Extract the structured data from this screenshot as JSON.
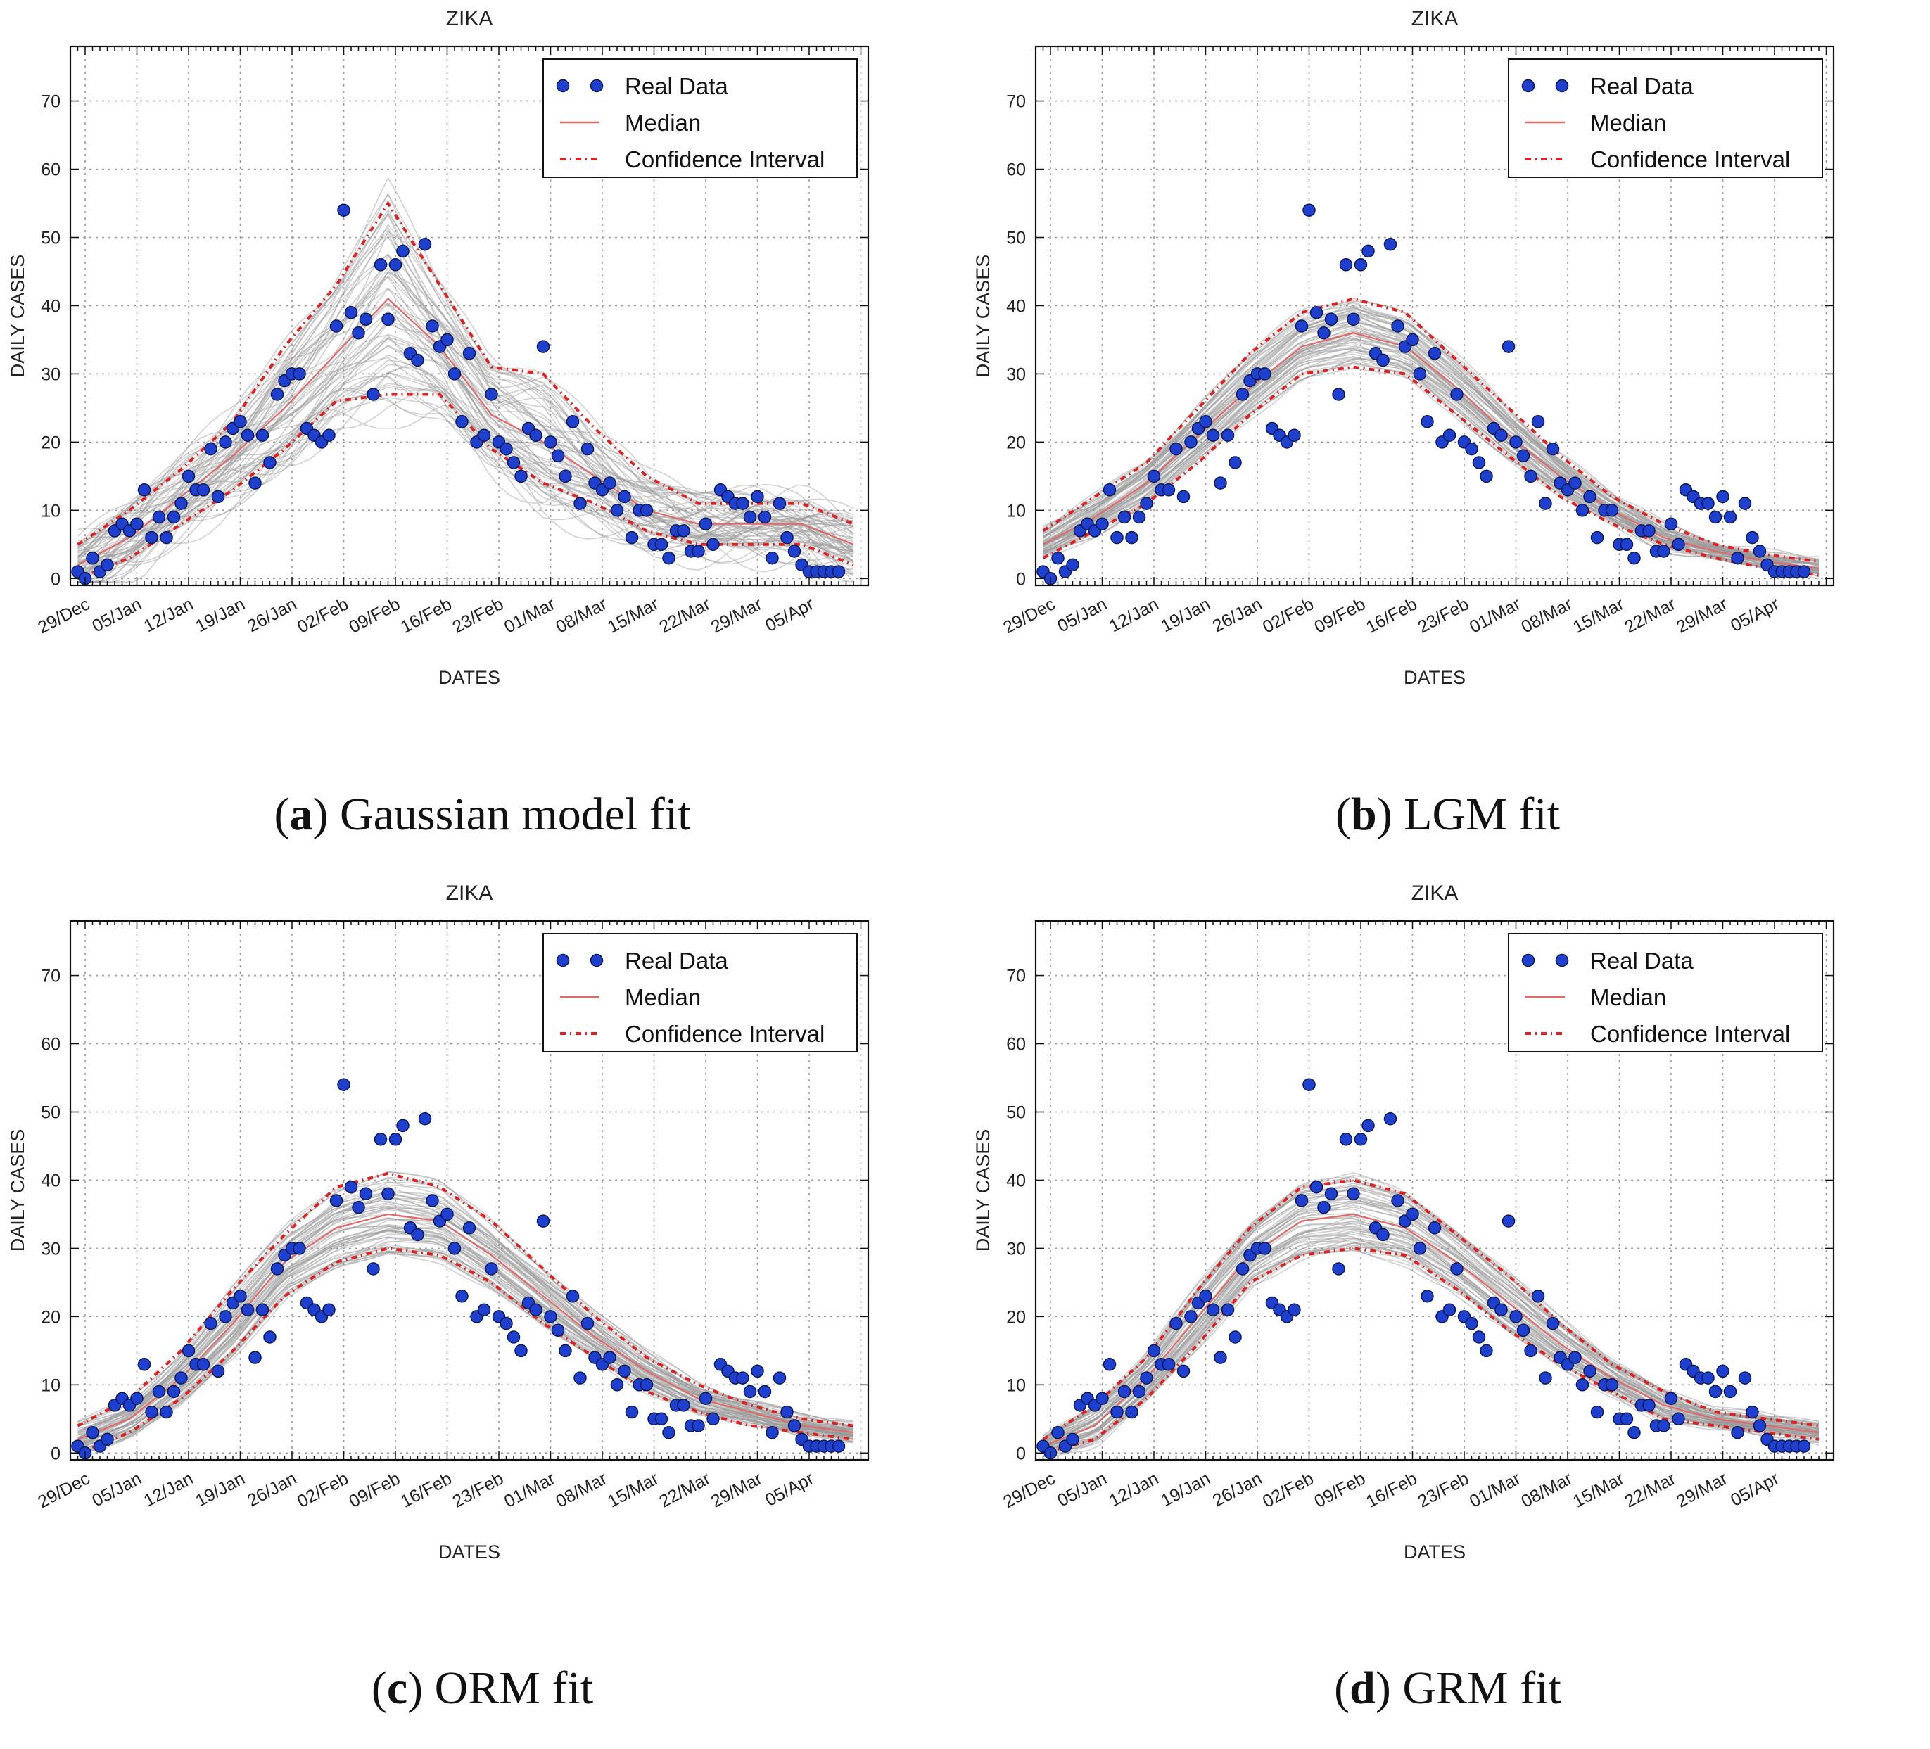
{
  "colors": {
    "real_data": "#1f3fcf",
    "median": "#e06a6a",
    "confidence_interval": "#e02020",
    "simulations": "#9a9a9a",
    "grid": "#9a9a9a"
  },
  "chart_data": [
    {
      "type": "line",
      "panel": "a",
      "caption_letter": "a",
      "caption_text": "Gaussian model fit",
      "title": "ZIKA",
      "xlabel": "DATES",
      "ylabel": "DAILY CASES",
      "ylim": [
        -1,
        78
      ],
      "xlim": [
        "2019-12-27",
        "2020-04-13"
      ],
      "yticks": [
        0,
        10,
        20,
        30,
        40,
        50,
        60,
        70
      ],
      "xticks": [
        "29/Dec",
        "05/Jan",
        "12/Jan",
        "19/Jan",
        "26/Jan",
        "02/Feb",
        "09/Feb",
        "16/Feb",
        "23/Feb",
        "01/Mar",
        "08/Mar",
        "15/Mar",
        "22/Mar",
        "29/Mar",
        "05/Apr"
      ],
      "grid": true,
      "legend_position": "top-right",
      "legend": [
        "Real Data",
        "Median",
        "Confidence Interval"
      ],
      "series": [
        {
          "name": "Median",
          "x": [
            "2019-12-28",
            "2020-01-04",
            "2020-01-11",
            "2020-01-18",
            "2020-01-25",
            "2020-02-01",
            "2020-02-08",
            "2020-02-15",
            "2020-02-22",
            "2020-02-29",
            "2020-03-07",
            "2020-03-14",
            "2020-03-21",
            "2020-03-28",
            "2020-04-04",
            "2020-04-11"
          ],
          "y": [
            2,
            6,
            12,
            18,
            25,
            33,
            41,
            34,
            24,
            20,
            15,
            10,
            8,
            8,
            8,
            5
          ]
        },
        {
          "name": "Confidence Interval (upper)",
          "x": [
            "2019-12-28",
            "2020-01-04",
            "2020-01-11",
            "2020-01-18",
            "2020-01-25",
            "2020-02-01",
            "2020-02-08",
            "2020-02-15",
            "2020-02-22",
            "2020-02-29",
            "2020-03-07",
            "2020-03-14",
            "2020-03-21",
            "2020-03-28",
            "2020-04-04",
            "2020-04-11"
          ],
          "y": [
            5,
            10,
            16,
            23,
            34,
            43,
            55,
            43,
            31,
            30,
            22,
            15,
            11,
            11,
            11,
            8
          ]
        },
        {
          "name": "Confidence Interval (lower)",
          "x": [
            "2019-12-28",
            "2020-01-04",
            "2020-01-11",
            "2020-01-18",
            "2020-01-25",
            "2020-02-01",
            "2020-02-08",
            "2020-02-15",
            "2020-02-22",
            "2020-02-29",
            "2020-03-07",
            "2020-03-14",
            "2020-03-21",
            "2020-03-28",
            "2020-04-04",
            "2020-04-11"
          ],
          "y": [
            0,
            3,
            8,
            13,
            19,
            26,
            27,
            27,
            19,
            14,
            11,
            7,
            5,
            5,
            5,
            2
          ]
        }
      ]
    },
    {
      "type": "line",
      "panel": "b",
      "caption_letter": "b",
      "caption_text": "LGM fit",
      "title": "ZIKA",
      "xlabel": "DATES",
      "ylabel": "DAILY CASES",
      "ylim": [
        -1,
        78
      ],
      "xlim": [
        "2019-12-27",
        "2020-04-13"
      ],
      "yticks": [
        0,
        10,
        20,
        30,
        40,
        50,
        60,
        70
      ],
      "xticks": [
        "29/Dec",
        "05/Jan",
        "12/Jan",
        "19/Jan",
        "26/Jan",
        "02/Feb",
        "09/Feb",
        "16/Feb",
        "23/Feb",
        "01/Mar",
        "08/Mar",
        "15/Mar",
        "22/Mar",
        "29/Mar",
        "05/Apr"
      ],
      "grid": true,
      "legend_position": "top-right",
      "legend": [
        "Real Data",
        "Median",
        "Confidence Interval"
      ],
      "series": [
        {
          "name": "Median",
          "x": [
            "2019-12-28",
            "2020-01-04",
            "2020-01-11",
            "2020-01-18",
            "2020-01-25",
            "2020-02-01",
            "2020-02-08",
            "2020-02-15",
            "2020-02-22",
            "2020-02-29",
            "2020-03-07",
            "2020-03-14",
            "2020-03-21",
            "2020-03-28",
            "2020-04-04",
            "2020-04-11"
          ],
          "y": [
            5,
            9,
            14,
            21,
            28,
            34,
            36,
            34,
            28,
            21,
            15,
            10,
            6,
            4,
            2.5,
            1.5
          ]
        },
        {
          "name": "Confidence Interval (upper)",
          "x": [
            "2019-12-28",
            "2020-01-04",
            "2020-01-11",
            "2020-01-18",
            "2020-01-25",
            "2020-02-01",
            "2020-02-08",
            "2020-02-15",
            "2020-02-22",
            "2020-02-29",
            "2020-03-07",
            "2020-03-14",
            "2020-03-21",
            "2020-03-28",
            "2020-04-04",
            "2020-04-11"
          ],
          "y": [
            7,
            12,
            17,
            25,
            33,
            39,
            41,
            39,
            32,
            25,
            18,
            12,
            8,
            5,
            3.5,
            2.5
          ]
        },
        {
          "name": "Confidence Interval (lower)",
          "x": [
            "2019-12-28",
            "2020-01-04",
            "2020-01-11",
            "2020-01-18",
            "2020-01-25",
            "2020-02-01",
            "2020-02-08",
            "2020-02-15",
            "2020-02-22",
            "2020-02-29",
            "2020-03-07",
            "2020-03-14",
            "2020-03-21",
            "2020-03-28",
            "2020-04-04",
            "2020-04-11"
          ],
          "y": [
            3,
            7,
            11,
            17,
            24,
            30,
            31,
            30,
            24,
            18,
            12,
            8,
            5,
            3,
            1.5,
            0.5
          ]
        }
      ]
    },
    {
      "type": "line",
      "panel": "c",
      "caption_letter": "c",
      "caption_text": "ORM fit",
      "title": "ZIKA",
      "xlabel": "DATES",
      "ylabel": "DAILY CASES",
      "ylim": [
        -1,
        78
      ],
      "xlim": [
        "2019-12-27",
        "2020-04-13"
      ],
      "yticks": [
        0,
        10,
        20,
        30,
        40,
        50,
        60,
        70
      ],
      "xticks": [
        "29/Dec",
        "05/Jan",
        "12/Jan",
        "19/Jan",
        "26/Jan",
        "02/Feb",
        "09/Feb",
        "16/Feb",
        "23/Feb",
        "01/Mar",
        "08/Mar",
        "15/Mar",
        "22/Mar",
        "29/Mar",
        "05/Apr"
      ],
      "grid": true,
      "legend_position": "top-right",
      "legend": [
        "Real Data",
        "Median",
        "Confidence Interval"
      ],
      "series": [
        {
          "name": "Median",
          "x": [
            "2019-12-28",
            "2020-01-04",
            "2020-01-11",
            "2020-01-18",
            "2020-01-25",
            "2020-02-01",
            "2020-02-08",
            "2020-02-15",
            "2020-02-22",
            "2020-02-29",
            "2020-03-07",
            "2020-03-14",
            "2020-03-21",
            "2020-03-28",
            "2020-04-04",
            "2020-04-11"
          ],
          "y": [
            2,
            5,
            11,
            19,
            28,
            33,
            35,
            34,
            29,
            23,
            17,
            12,
            8,
            6,
            4,
            3
          ]
        },
        {
          "name": "Confidence Interval (upper)",
          "x": [
            "2019-12-28",
            "2020-01-04",
            "2020-01-11",
            "2020-01-18",
            "2020-01-25",
            "2020-02-01",
            "2020-02-08",
            "2020-02-15",
            "2020-02-22",
            "2020-02-29",
            "2020-03-07",
            "2020-03-14",
            "2020-03-21",
            "2020-03-28",
            "2020-04-04",
            "2020-04-11"
          ],
          "y": [
            4,
            8,
            15,
            24,
            32,
            39,
            41,
            39,
            34,
            27,
            20,
            14,
            10,
            7,
            5,
            4
          ]
        },
        {
          "name": "Confidence Interval (lower)",
          "x": [
            "2019-12-28",
            "2020-01-04",
            "2020-01-11",
            "2020-01-18",
            "2020-01-25",
            "2020-02-01",
            "2020-02-08",
            "2020-02-15",
            "2020-02-22",
            "2020-02-29",
            "2020-03-07",
            "2020-03-14",
            "2020-03-21",
            "2020-03-28",
            "2020-04-04",
            "2020-04-11"
          ],
          "y": [
            0,
            3,
            8,
            15,
            23,
            28,
            30,
            29,
            25,
            19,
            14,
            9,
            6,
            4,
            3,
            2
          ]
        }
      ]
    },
    {
      "type": "line",
      "panel": "d",
      "caption_letter": "d",
      "caption_text": "GRM fit",
      "title": "ZIKA",
      "xlabel": "DATES",
      "ylabel": "DAILY CASES",
      "ylim": [
        -1,
        78
      ],
      "xlim": [
        "2019-12-27",
        "2020-04-13"
      ],
      "yticks": [
        0,
        10,
        20,
        30,
        40,
        50,
        60,
        70
      ],
      "xticks": [
        "29/Dec",
        "05/Jan",
        "12/Jan",
        "19/Jan",
        "26/Jan",
        "02/Feb",
        "09/Feb",
        "16/Feb",
        "23/Feb",
        "01/Mar",
        "08/Mar",
        "15/Mar",
        "22/Mar",
        "29/Mar",
        "05/Apr"
      ],
      "grid": true,
      "legend_position": "top-right",
      "legend": [
        "Real Data",
        "Median",
        "Confidence Interval"
      ],
      "series": [
        {
          "name": "Median",
          "x": [
            "2019-12-28",
            "2020-01-04",
            "2020-01-11",
            "2020-01-18",
            "2020-01-25",
            "2020-02-01",
            "2020-02-08",
            "2020-02-15",
            "2020-02-22",
            "2020-02-29",
            "2020-03-07",
            "2020-03-14",
            "2020-03-21",
            "2020-03-28",
            "2020-04-04",
            "2020-04-11"
          ],
          "y": [
            1,
            4,
            11,
            20,
            29,
            34,
            35,
            33,
            28,
            22,
            16,
            11,
            7,
            5,
            4,
            3
          ]
        },
        {
          "name": "Confidence Interval (upper)",
          "x": [
            "2019-12-28",
            "2020-01-04",
            "2020-01-11",
            "2020-01-18",
            "2020-01-25",
            "2020-02-01",
            "2020-02-08",
            "2020-02-15",
            "2020-02-22",
            "2020-02-29",
            "2020-03-07",
            "2020-03-14",
            "2020-03-21",
            "2020-03-28",
            "2020-04-04",
            "2020-04-11"
          ],
          "y": [
            2,
            7,
            14,
            24,
            33,
            39,
            40,
            38,
            32,
            26,
            19,
            13,
            9,
            6,
            5,
            4
          ]
        },
        {
          "name": "Confidence Interval (lower)",
          "x": [
            "2019-12-28",
            "2020-01-04",
            "2020-01-11",
            "2020-01-18",
            "2020-01-25",
            "2020-02-01",
            "2020-02-08",
            "2020-02-15",
            "2020-02-22",
            "2020-02-29",
            "2020-03-07",
            "2020-03-14",
            "2020-03-21",
            "2020-03-28",
            "2020-04-04",
            "2020-04-11"
          ],
          "y": [
            0,
            2,
            8,
            16,
            25,
            29,
            30,
            29,
            24,
            18,
            13,
            9,
            5,
            4,
            3,
            2
          ]
        }
      ]
    }
  ],
  "real_data": {
    "name": "Real Data",
    "x": [
      "2019-12-28",
      "2019-12-29",
      "2019-12-30",
      "2019-12-31",
      "2020-01-01",
      "2020-01-02",
      "2020-01-03",
      "2020-01-04",
      "2020-01-05",
      "2020-01-06",
      "2020-01-07",
      "2020-01-08",
      "2020-01-09",
      "2020-01-10",
      "2020-01-11",
      "2020-01-12",
      "2020-01-13",
      "2020-01-14",
      "2020-01-15",
      "2020-01-16",
      "2020-01-17",
      "2020-01-18",
      "2020-01-19",
      "2020-01-20",
      "2020-01-21",
      "2020-01-22",
      "2020-01-23",
      "2020-01-24",
      "2020-01-25",
      "2020-01-26",
      "2020-01-27",
      "2020-01-28",
      "2020-01-29",
      "2020-01-30",
      "2020-01-31",
      "2020-02-01",
      "2020-02-02",
      "2020-02-03",
      "2020-02-04",
      "2020-02-05",
      "2020-02-06",
      "2020-02-07",
      "2020-02-08",
      "2020-02-09",
      "2020-02-10",
      "2020-02-11",
      "2020-02-12",
      "2020-02-13",
      "2020-02-14",
      "2020-02-15",
      "2020-02-16",
      "2020-02-17",
      "2020-02-18",
      "2020-02-19",
      "2020-02-20",
      "2020-02-21",
      "2020-02-22",
      "2020-02-23",
      "2020-02-24",
      "2020-02-25",
      "2020-02-26",
      "2020-02-27",
      "2020-02-28",
      "2020-02-29",
      "2020-03-01",
      "2020-03-02",
      "2020-03-03",
      "2020-03-04",
      "2020-03-05",
      "2020-03-06",
      "2020-03-07",
      "2020-03-08",
      "2020-03-09",
      "2020-03-10",
      "2020-03-11",
      "2020-03-12",
      "2020-03-13",
      "2020-03-14",
      "2020-03-15",
      "2020-03-16",
      "2020-03-17",
      "2020-03-18",
      "2020-03-19",
      "2020-03-20",
      "2020-03-21",
      "2020-03-22",
      "2020-03-23",
      "2020-03-24",
      "2020-03-25",
      "2020-03-26",
      "2020-03-27",
      "2020-03-28",
      "2020-03-29",
      "2020-03-30",
      "2020-03-31",
      "2020-04-01",
      "2020-04-02",
      "2020-04-03",
      "2020-04-04",
      "2020-04-05",
      "2020-04-06",
      "2020-04-07",
      "2020-04-08",
      "2020-04-09"
    ],
    "y": [
      1,
      0,
      3,
      1,
      2,
      7,
      8,
      7,
      8,
      13,
      6,
      9,
      6,
      9,
      11,
      15,
      13,
      13,
      19,
      12,
      20,
      22,
      23,
      21,
      14,
      21,
      17,
      27,
      29,
      30,
      30,
      22,
      21,
      20,
      21,
      37,
      54,
      39,
      36,
      38,
      27,
      46,
      38,
      46,
      48,
      33,
      32,
      49,
      37,
      34,
      35,
      30,
      23,
      33,
      20,
      21,
      27,
      20,
      19,
      17,
      15,
      22,
      21,
      34,
      20,
      18,
      15,
      23,
      11,
      19,
      14,
      13,
      14,
      10,
      12,
      6,
      10,
      10,
      5,
      5,
      3,
      7,
      7,
      4,
      4,
      8,
      5,
      13,
      12,
      11,
      11,
      9,
      12,
      9,
      3,
      11,
      6,
      4,
      2,
      1,
      1,
      1,
      1,
      1
    ]
  }
}
